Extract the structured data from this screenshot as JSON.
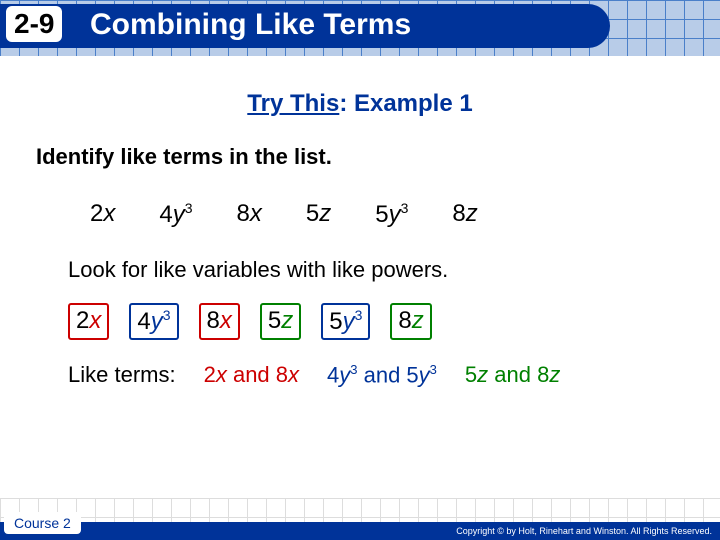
{
  "header": {
    "lesson_number": "2-9",
    "lesson_title": "Combining Like Terms"
  },
  "try_this": {
    "prefix": "Try This",
    "suffix": ": Example 1"
  },
  "instruction": "Identify like terms in the list.",
  "terms_plain": [
    {
      "coef": "2",
      "var": "x",
      "sup": ""
    },
    {
      "coef": "4",
      "var": "y",
      "sup": "3"
    },
    {
      "coef": "8",
      "var": "x",
      "sup": ""
    },
    {
      "coef": "5",
      "var": "z",
      "sup": ""
    },
    {
      "coef": "5",
      "var": "y",
      "sup": "3"
    },
    {
      "coef": "8",
      "var": "z",
      "sup": ""
    }
  ],
  "explain": "Look for like variables with like powers.",
  "colors": {
    "red": "#cc0000",
    "blue": "#003399",
    "green": "#008000"
  },
  "terms_boxed": [
    {
      "coef": "2",
      "var": "x",
      "sup": "",
      "color": "#cc0000"
    },
    {
      "coef": "4",
      "var": "y",
      "sup": "3",
      "color": "#003399"
    },
    {
      "coef": "8",
      "var": "x",
      "sup": "",
      "color": "#cc0000"
    },
    {
      "coef": "5",
      "var": "z",
      "sup": "",
      "color": "#008000"
    },
    {
      "coef": "5",
      "var": "y",
      "sup": "3",
      "color": "#003399"
    },
    {
      "coef": "8",
      "var": "z",
      "sup": "",
      "color": "#008000"
    }
  ],
  "answers": {
    "label": "Like terms:",
    "groups": [
      {
        "text_parts": [
          "2",
          "x",
          " and 8",
          "x",
          ""
        ],
        "color": "#cc0000"
      },
      {
        "text_parts": [
          "4",
          "y",
          "3",
          " and 5",
          "y",
          "3"
        ],
        "color": "#003399"
      },
      {
        "text_parts": [
          "5",
          "z",
          " and 8",
          "z",
          ""
        ],
        "color": "#008000"
      }
    ]
  },
  "footer": {
    "course": "Course 2",
    "copyright": "Copyright © by Holt, Rinehart and Winston. All Rights Reserved."
  }
}
